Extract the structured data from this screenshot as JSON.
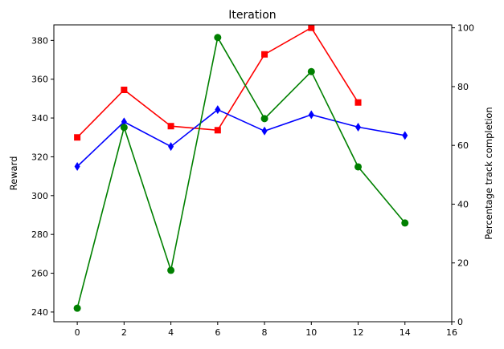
{
  "chart_data": {
    "type": "line",
    "title": "Iteration",
    "xlabel": "",
    "ylabel_left": "Reward",
    "ylabel_right": "Percentage track completion",
    "xlim": [
      -1,
      16
    ],
    "ylim_left": [
      235,
      388
    ],
    "ylim_right": [
      0,
      101
    ],
    "x_ticks": [
      0,
      2,
      4,
      6,
      8,
      10,
      12,
      14,
      16
    ],
    "y_ticks_left": [
      240,
      260,
      280,
      300,
      320,
      340,
      360,
      380
    ],
    "y_ticks_right": [
      0,
      20,
      40,
      60,
      80,
      100
    ],
    "grid": false,
    "series": [
      {
        "axis": "left",
        "color": "#ff0000",
        "marker": "square",
        "x": [
          0,
          2,
          4,
          6,
          8,
          10,
          12
        ],
        "values": [
          330,
          354.5,
          335.8,
          333.7,
          372.8,
          386.5,
          348
        ]
      },
      {
        "axis": "left",
        "color": "#0000ff",
        "marker": "diamond",
        "x": [
          0,
          2,
          4,
          6,
          8,
          10,
          12,
          14
        ],
        "values": [
          315,
          338,
          325.3,
          344.3,
          333.3,
          341.7,
          335.3,
          331
        ]
      },
      {
        "axis": "right",
        "color": "#008000",
        "marker": "circle",
        "x": [
          0,
          2,
          4,
          6,
          8,
          10,
          12,
          14
        ],
        "values": [
          4.6,
          66.1,
          17.5,
          96.7,
          69.1,
          85.1,
          52.7,
          33.6
        ]
      }
    ]
  }
}
